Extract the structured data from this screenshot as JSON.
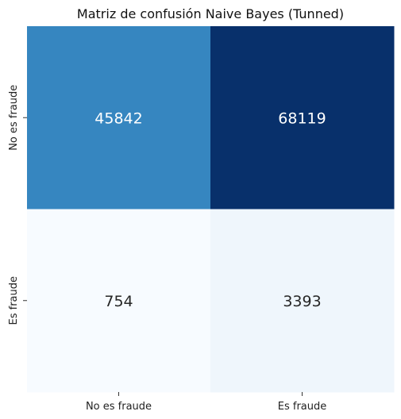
{
  "chart_data": {
    "type": "heatmap",
    "title": "Matriz de confusión Naive Bayes (Tunned)",
    "xlabel": "",
    "ylabel": "",
    "x_categories": [
      "No es fraude",
      "Es fraude"
    ],
    "y_categories": [
      "No es fraude",
      "Es fraude"
    ],
    "values": [
      [
        45842,
        68119
      ],
      [
        754,
        3393
      ]
    ],
    "colormap": "Blues",
    "colorbar": false,
    "annotations": true
  }
}
